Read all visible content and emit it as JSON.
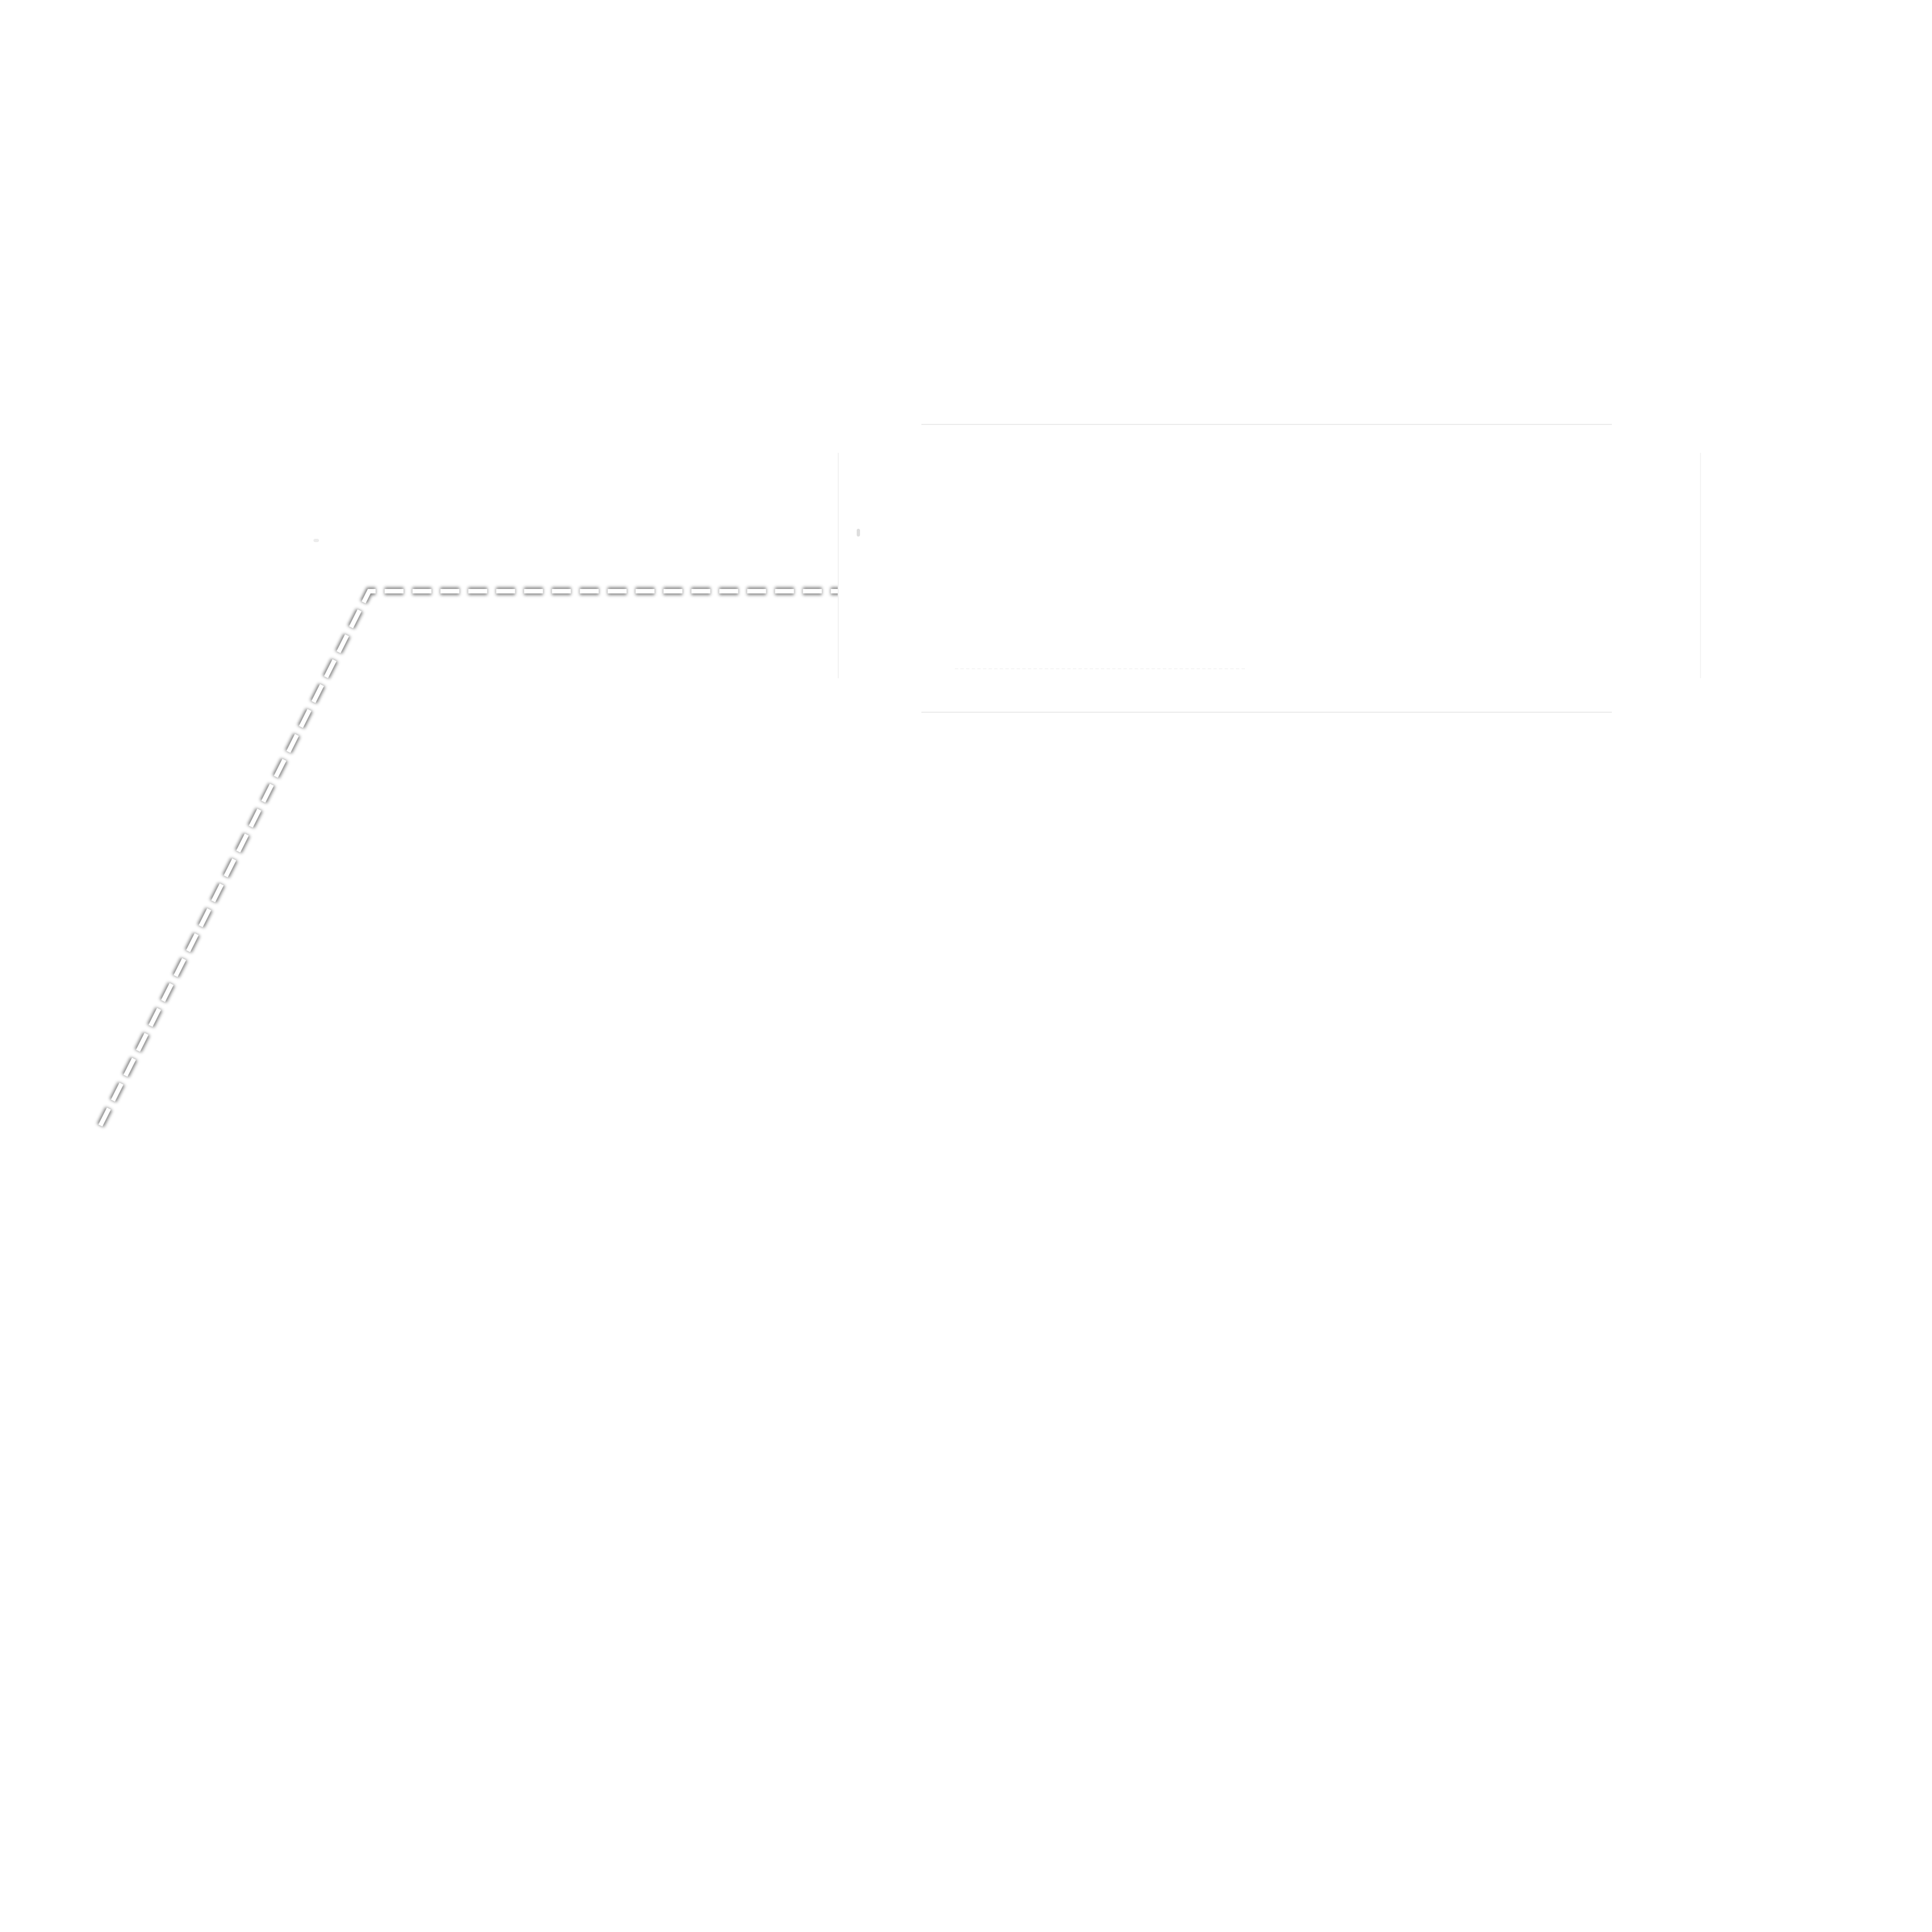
{
  "colors": {
    "background": "#ffffff",
    "leader_line": "#ffffff",
    "leader_shadow": "#6e6e6e",
    "box_border": "#ececec"
  }
}
